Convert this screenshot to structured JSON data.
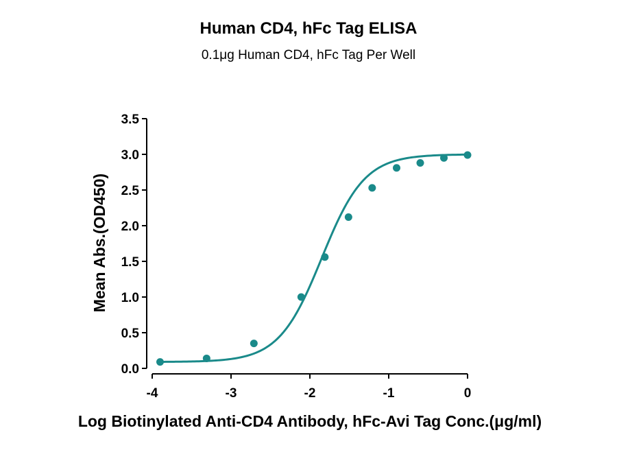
{
  "chart_data": {
    "type": "line",
    "title": "Human CD4, hFc Tag ELISA",
    "subtitle": "0.1μg Human CD4, hFc Tag Per Well",
    "xlabel": "Log Biotinylated Anti-CD4 Antibody, hFc-Avi Tag Conc.(μg/ml)",
    "ylabel": "Mean Abs.(OD450)",
    "xlim": [
      -4,
      0
    ],
    "ylim": [
      0,
      3.5
    ],
    "x_ticks": [
      "-4",
      "-3",
      "-2",
      "-1",
      "0"
    ],
    "y_ticks": [
      "0.0",
      "0.5",
      "1.0",
      "1.5",
      "2.0",
      "2.5",
      "3.0",
      "3.5"
    ],
    "grid": false,
    "series": [
      {
        "color": "#1a8a8a",
        "x": [
          -3.9,
          -3.31,
          -2.71,
          -2.11,
          -1.81,
          -1.51,
          -1.21,
          -0.9,
          -0.6,
          -0.3,
          0.0
        ],
        "y": [
          0.09,
          0.14,
          0.35,
          1.0,
          1.56,
          2.12,
          2.53,
          2.81,
          2.88,
          2.95,
          2.99
        ]
      }
    ],
    "fit_curve": {
      "bottom": 0.09,
      "top": 3.0,
      "log_ec50": -1.85,
      "hill_slope": 1.6
    }
  }
}
